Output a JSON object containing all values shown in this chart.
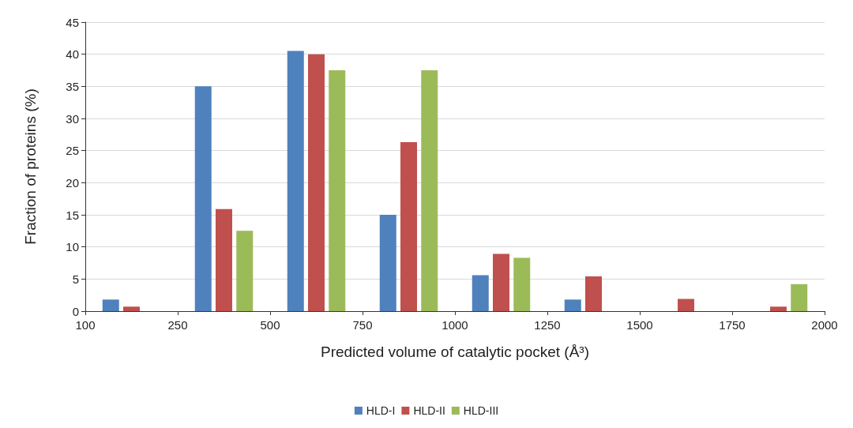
{
  "chart_data": {
    "type": "bar",
    "xlabel": "Predicted volume of catalytic pocket (Å³)",
    "ylabel": "Fraction of proteins (%)",
    "categories": [
      null,
      null,
      null,
      null,
      null,
      null,
      null,
      null
    ],
    "annotations": [
      "100",
      "250",
      "500",
      "750",
      "1000",
      "1250",
      "1500",
      "1750",
      "2000"
    ],
    "ylim": [
      0,
      45
    ],
    "yticks": [
      0,
      5,
      10,
      15,
      20,
      25,
      30,
      35,
      40,
      45
    ],
    "series": [
      {
        "name": "HLD-I",
        "color": "#4f81bd",
        "values": [
          1.8,
          35,
          40.5,
          15,
          5.6,
          1.8,
          0,
          0
        ]
      },
      {
        "name": "HLD-II",
        "color": "#c0504d",
        "values": [
          0.7,
          15.9,
          40,
          26.3,
          8.9,
          5.4,
          1.9,
          0.7
        ]
      },
      {
        "name": "HLD-III",
        "color": "#9bbb59",
        "values": [
          0,
          12.5,
          37.5,
          37.5,
          8.3,
          0,
          0,
          4.2
        ]
      }
    ],
    "grid": "y",
    "legend": "bottom"
  }
}
